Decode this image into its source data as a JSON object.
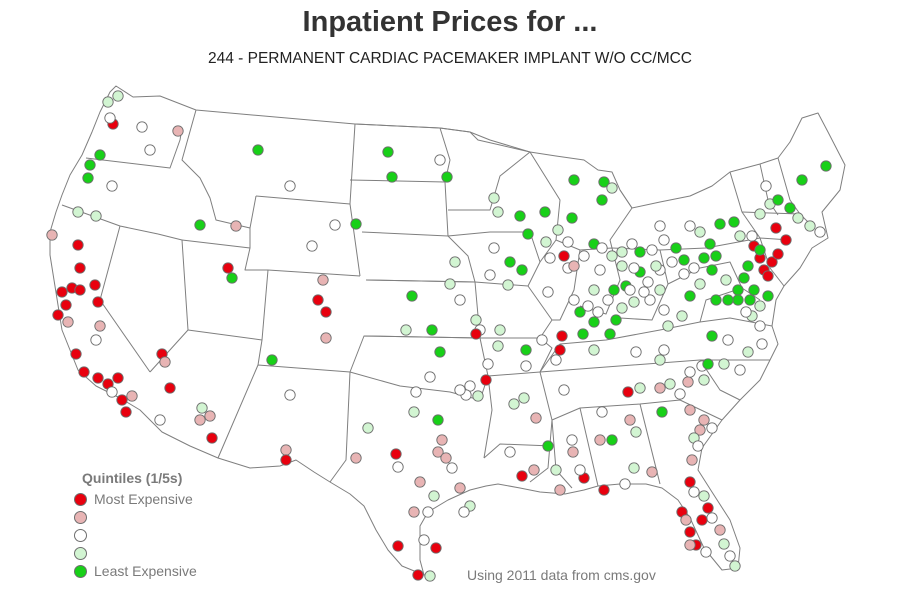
{
  "title": "Inpatient Prices for ...",
  "subtitle": "244 - PERMANENT CARDIAC PACEMAKER IMPLANT W/O CC/MCC",
  "legend": {
    "title": "Quintiles (1/5s)",
    "items": [
      {
        "label": "Most Expensive",
        "color": "#e8000e"
      },
      {
        "label": "",
        "color": "#e8b4b4"
      },
      {
        "label": "",
        "color": "#ffffff"
      },
      {
        "label": "",
        "color": "#d2f5d2"
      },
      {
        "label": "Least Expensive",
        "color": "#18d018"
      }
    ]
  },
  "source": "Using 2011 data from cms.gov",
  "colors": {
    "state_border": "#7f7f7f",
    "dot_outline": "#6e6e6e"
  }
}
